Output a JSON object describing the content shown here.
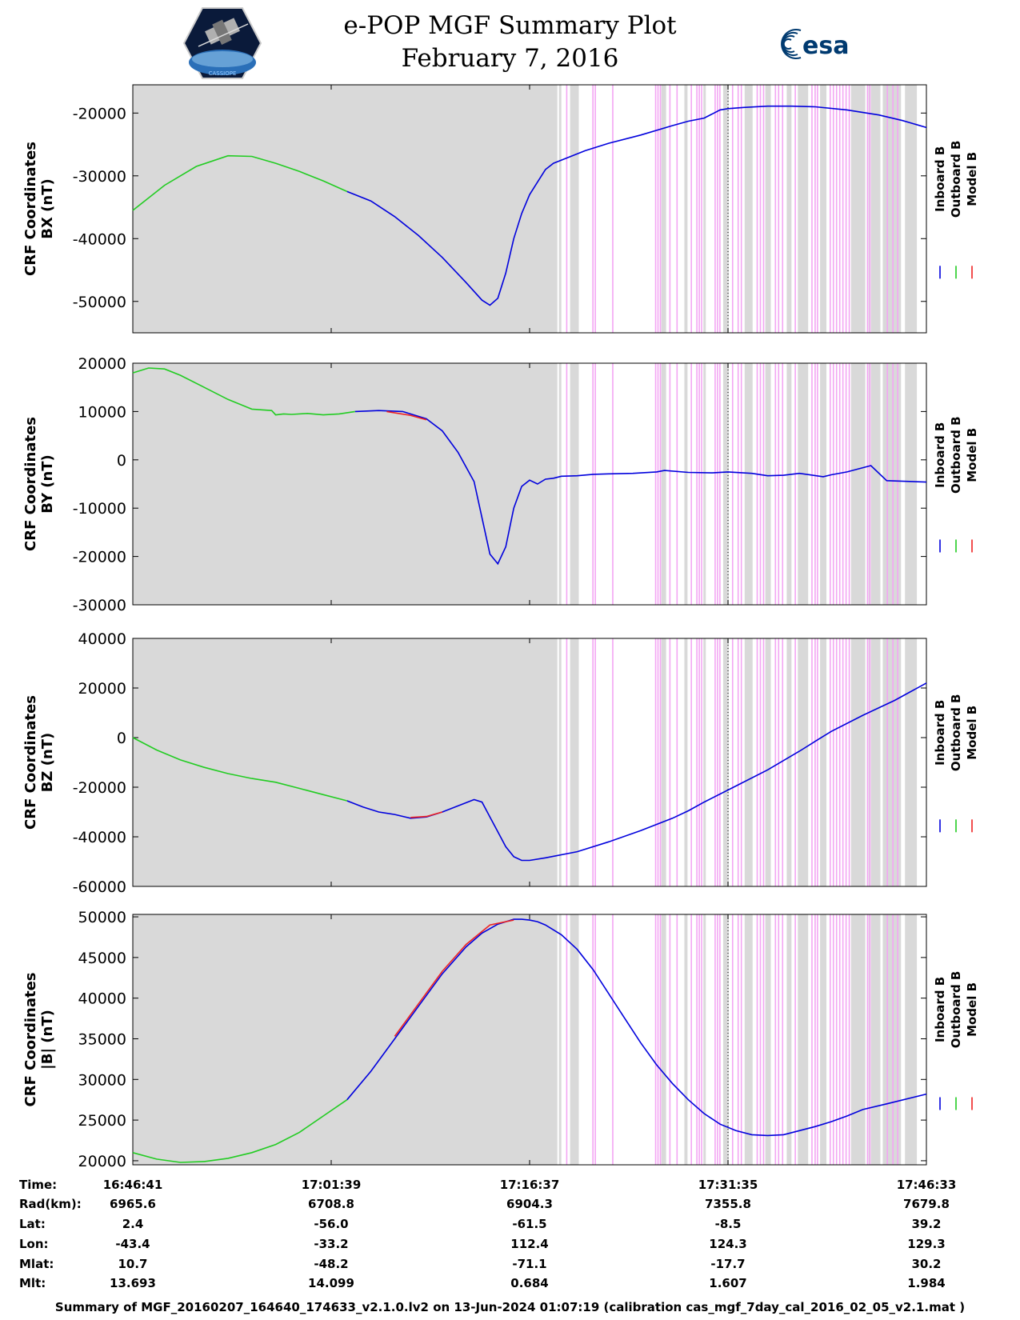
{
  "header": {
    "title": "e-POP MGF Summary Plot",
    "date": "February 7, 2016",
    "mission_logo": "cassiope-satellite-logo",
    "agency_logo_text": "esa"
  },
  "colors": {
    "inboard": "#0000dd",
    "outboard": "#22cc22",
    "model": "#ee2222",
    "shading_gray": "#d9d9d9",
    "shading_magenta": "#f3a6f3"
  },
  "legend": {
    "inboard": "Inboard B",
    "outboard": "Outboard B",
    "model": "Model B"
  },
  "time_axis": {
    "ticks": [
      "16:46:41",
      "17:01:39",
      "17:16:37",
      "17:31:35",
      "17:46:33"
    ],
    "tick_fractions": [
      0,
      0.25,
      0.5,
      0.75,
      1.0
    ]
  },
  "shading": {
    "gray_full_until": 0.535,
    "gray_bands": [
      [
        0.537,
        0.54
      ],
      [
        0.551,
        0.562
      ],
      [
        0.666,
        0.672
      ],
      [
        0.695,
        0.699
      ],
      [
        0.719,
        0.722
      ],
      [
        0.744,
        0.751
      ],
      [
        0.771,
        0.781
      ],
      [
        0.797,
        0.804
      ],
      [
        0.824,
        0.83
      ],
      [
        0.838,
        0.851
      ],
      [
        0.866,
        0.874
      ],
      [
        0.905,
        0.923
      ],
      [
        0.927,
        0.927
      ],
      [
        0.93,
        0.942
      ],
      [
        0.945,
        0.968
      ],
      [
        0.973,
        0.988
      ]
    ],
    "magenta_lines": [
      0.546,
      0.579,
      0.582,
      0.604,
      0.658,
      0.661,
      0.664,
      0.676,
      0.685,
      0.703,
      0.71,
      0.713,
      0.716,
      0.733,
      0.736,
      0.739,
      0.755,
      0.762,
      0.766,
      0.786,
      0.79,
      0.794,
      0.809,
      0.813,
      0.818,
      0.834,
      0.855,
      0.859,
      0.862,
      0.878,
      0.882,
      0.886,
      0.89,
      0.894,
      0.898,
      0.902,
      0.925,
      0.928,
      0.95,
      0.957,
      0.963
    ]
  },
  "chart_data": [
    {
      "type": "line",
      "ylabel": [
        "CRF Coordinates",
        "BX (nT)"
      ],
      "ylim": [
        -55000,
        -15500
      ],
      "yticks": [
        -50000,
        -40000,
        -30000,
        -20000
      ],
      "series": [
        {
          "name": "Inboard B",
          "segments": [
            {
              "x": [
                0.27,
                0.3,
                0.33,
                0.36,
                0.39,
                0.42,
                0.44,
                0.45,
                0.46,
                0.47,
                0.48,
                0.49,
                0.5,
                0.51,
                0.52,
                0.53,
                0.55,
                0.57,
                0.6,
                0.64,
                0.68,
                0.7,
                0.72,
                0.74,
                0.75,
                0.77,
                0.8,
                0.83,
                0.86,
                0.9,
                0.94,
                0.97,
                1.0
              ],
              "y": [
                -32500,
                -34000,
                -36500,
                -39500,
                -43000,
                -47000,
                -49800,
                -50600,
                -49500,
                -45500,
                -40000,
                -36000,
                -33000,
                -31000,
                -29000,
                -28000,
                -27000,
                -26000,
                -24800,
                -23500,
                -22000,
                -21300,
                -20800,
                -19500,
                -19300,
                -19100,
                -18900,
                -18900,
                -19000,
                -19500,
                -20300,
                -21200,
                -22300
              ]
            }
          ]
        },
        {
          "name": "Outboard B",
          "segments": [
            {
              "x": [
                0.0,
                0.04,
                0.08,
                0.12,
                0.15,
                0.18,
                0.21,
                0.24,
                0.27
              ],
              "y": [
                -35500,
                -31500,
                -28500,
                -26800,
                -26900,
                -28000,
                -29300,
                -30800,
                -32500
              ]
            }
          ]
        },
        {
          "name": "Model B",
          "segments": []
        }
      ]
    },
    {
      "type": "line",
      "ylabel": [
        "CRF Coordinates",
        "BY (nT)"
      ],
      "ylim": [
        -30000,
        20000
      ],
      "yticks": [
        -30000,
        -20000,
        -10000,
        0,
        10000,
        20000
      ],
      "series": [
        {
          "name": "Inboard B",
          "segments": [
            {
              "x": [
                0.28,
                0.31,
                0.34,
                0.37,
                0.39,
                0.41,
                0.43,
                0.44,
                0.45,
                0.46,
                0.47,
                0.48,
                0.49,
                0.5,
                0.51,
                0.52,
                0.53,
                0.54,
                0.56,
                0.58,
                0.6,
                0.63,
                0.66,
                0.67,
                0.7,
                0.73,
                0.75,
                0.78,
                0.8,
                0.82,
                0.84,
                0.87,
                0.88,
                0.9,
                0.93,
                0.95,
                1.0
              ],
              "y": [
                10000,
                10200,
                10000,
                8500,
                6000,
                1500,
                -4500,
                -12000,
                -19500,
                -21500,
                -18000,
                -10000,
                -5500,
                -4200,
                -5000,
                -4000,
                -3800,
                -3400,
                -3300,
                -3000,
                -2900,
                -2800,
                -2500,
                -2200,
                -2600,
                -2700,
                -2500,
                -2800,
                -3300,
                -3200,
                -2800,
                -3500,
                -3100,
                -2500,
                -1200,
                -4300,
                -4600
              ]
            }
          ]
        },
        {
          "name": "Outboard B",
          "segments": [
            {
              "x": [
                0.0,
                0.02,
                0.04,
                0.06,
                0.09,
                0.12,
                0.15,
                0.175,
                0.18,
                0.19,
                0.2,
                0.22,
                0.24,
                0.26,
                0.28
              ],
              "y": [
                18000,
                19000,
                18800,
                17500,
                15000,
                12500,
                10500,
                10200,
                9300,
                9500,
                9400,
                9600,
                9300,
                9500,
                10000
              ]
            }
          ]
        },
        {
          "name": "Model B",
          "segments": [
            {
              "x": [
                0.32,
                0.35,
                0.37
              ],
              "y": [
                10000,
                9200,
                8300
              ]
            }
          ]
        }
      ]
    },
    {
      "type": "line",
      "ylabel": [
        "CRF Coordinates",
        "BZ (nT)"
      ],
      "ylim": [
        -60000,
        40000
      ],
      "yticks": [
        -60000,
        -40000,
        -20000,
        0,
        20000,
        40000
      ],
      "series": [
        {
          "name": "Inboard B",
          "segments": [
            {
              "x": [
                0.27,
                0.29,
                0.31,
                0.33,
                0.35,
                0.37,
                0.39,
                0.41,
                0.43,
                0.44,
                0.45,
                0.46,
                0.47,
                0.48,
                0.49,
                0.5,
                0.52,
                0.56,
                0.6,
                0.64,
                0.68,
                0.7,
                0.72,
                0.76,
                0.8,
                0.84,
                0.86,
                0.88,
                0.92,
                0.96,
                1.0
              ],
              "y": [
                -25500,
                -28000,
                -30000,
                -31000,
                -32500,
                -32000,
                -30000,
                -27500,
                -25000,
                -26000,
                -32000,
                -38000,
                -44000,
                -48000,
                -49500,
                -49500,
                -48500,
                -46000,
                -42000,
                -37500,
                -32500,
                -29500,
                -26000,
                -19500,
                -13000,
                -5500,
                -1500,
                2500,
                9000,
                15000,
                22000
              ]
            }
          ]
        },
        {
          "name": "Outboard B",
          "segments": [
            {
              "x": [
                0.0,
                0.03,
                0.06,
                0.09,
                0.12,
                0.15,
                0.18,
                0.21,
                0.24,
                0.27
              ],
              "y": [
                0,
                -5000,
                -9000,
                -12000,
                -14500,
                -16500,
                -18000,
                -20500,
                -23000,
                -25500
              ]
            }
          ]
        },
        {
          "name": "Model B",
          "segments": [
            {
              "x": [
                0.35,
                0.37,
                0.39
              ],
              "y": [
                -32200,
                -31800,
                -30000
              ]
            }
          ]
        }
      ]
    },
    {
      "type": "line",
      "ylabel": [
        "CRF Coordinates",
        "|B| (nT)"
      ],
      "ylim": [
        19500,
        50300
      ],
      "yticks": [
        20000,
        25000,
        30000,
        35000,
        40000,
        45000,
        50000
      ],
      "series": [
        {
          "name": "Inboard B",
          "segments": [
            {
              "x": [
                0.27,
                0.3,
                0.33,
                0.36,
                0.39,
                0.42,
                0.44,
                0.46,
                0.48,
                0.49,
                0.5,
                0.51,
                0.52,
                0.54,
                0.56,
                0.58,
                0.6,
                0.62,
                0.64,
                0.66,
                0.68,
                0.7,
                0.72,
                0.74,
                0.76,
                0.78,
                0.8,
                0.82,
                0.84,
                0.86,
                0.88,
                0.9,
                0.92,
                0.95,
                1.0
              ],
              "y": [
                27500,
                31000,
                35000,
                39000,
                43000,
                46300,
                48000,
                49100,
                49700,
                49700,
                49600,
                49400,
                49000,
                47800,
                46000,
                43500,
                40500,
                37500,
                34500,
                31800,
                29500,
                27500,
                25800,
                24500,
                23700,
                23200,
                23100,
                23200,
                23700,
                24200,
                24800,
                25500,
                26300,
                27000,
                28200
              ]
            }
          ]
        },
        {
          "name": "Outboard B",
          "segments": [
            {
              "x": [
                0.0,
                0.03,
                0.06,
                0.09,
                0.12,
                0.15,
                0.18,
                0.21,
                0.24,
                0.27
              ],
              "y": [
                21000,
                20200,
                19800,
                19900,
                20300,
                21000,
                22000,
                23500,
                25500,
                27500
              ]
            }
          ]
        },
        {
          "name": "Model B",
          "segments": [
            {
              "x": [
                0.33,
                0.36,
                0.39,
                0.42,
                0.45,
                0.48
              ],
              "y": [
                35300,
                39300,
                43300,
                46600,
                49000,
                49600
              ]
            }
          ]
        }
      ]
    }
  ],
  "summary_table": {
    "row_labels": [
      "Time:",
      "Rad(km):",
      "Lat:",
      "Lon:",
      "Mlat:",
      "Mlt:"
    ],
    "rows": [
      [
        "16:46:41",
        "17:01:39",
        "17:16:37",
        "17:31:35",
        "17:46:33"
      ],
      [
        "6965.6",
        "6708.8",
        "6904.3",
        "7355.8",
        "7679.8"
      ],
      [
        "2.4",
        "-56.0",
        "-61.5",
        "-8.5",
        "39.2"
      ],
      [
        "-43.4",
        "-33.2",
        "112.4",
        "124.3",
        "129.3"
      ],
      [
        "10.7",
        "-48.2",
        "-71.1",
        "-17.7",
        "30.2"
      ],
      [
        "13.693",
        "14.099",
        "0.684",
        "1.607",
        "1.984"
      ]
    ]
  },
  "footer": "Summary of MGF_20160207_164640_174633_v2.1.0.lv2 on 13-Jun-2024 01:07:19 (calibration cas_mgf_7day_cal_2016_02_05_v2.1.mat )"
}
